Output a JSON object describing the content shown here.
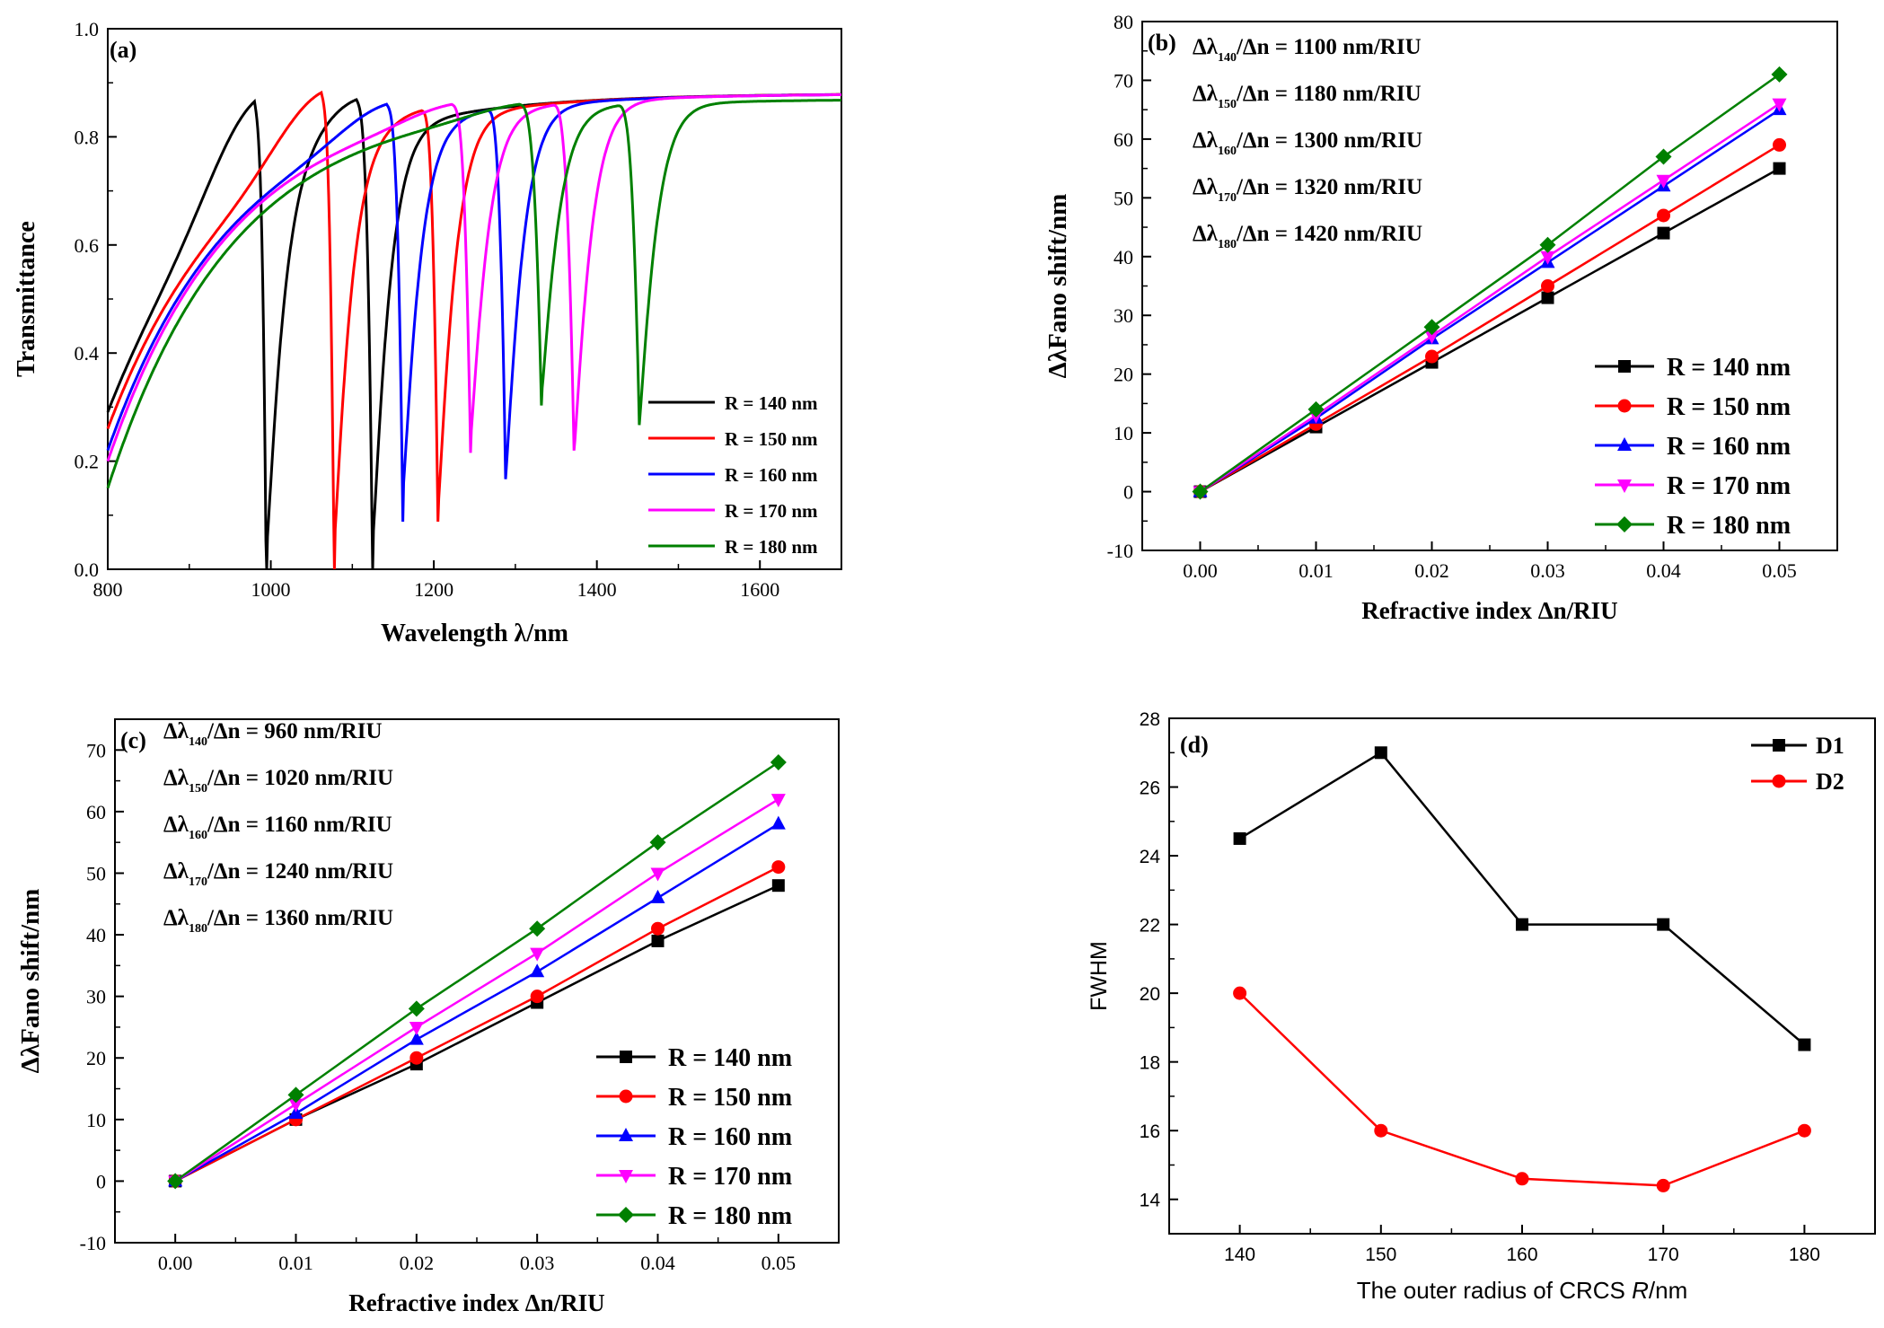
{
  "chart_data": [
    {
      "panel": "(a)",
      "type": "line",
      "xlabel": "Wavelength λ/nm",
      "ylabel": "Transmittance",
      "xlim": [
        800,
        1700
      ],
      "ylim": [
        0.0,
        1.0
      ],
      "xticks": [
        800,
        1000,
        1200,
        1400,
        1600
      ],
      "xtick_labels": [
        "800",
        "1000",
        "1200",
        "1400",
        "1600"
      ],
      "yticks": [
        0.0,
        0.2,
        0.4,
        0.6,
        0.8,
        1.0
      ],
      "ytick_labels": [
        "0.0",
        "0.2",
        "0.4",
        "0.6",
        "0.8",
        "1.0"
      ],
      "legend_position": "bottom-right",
      "series": [
        {
          "name": "R = 140 nm",
          "color": "#000000",
          "resonances": [
            {
              "peak_x": 980,
              "peak_y": 0.86,
              "dip_x": 995,
              "dip_y": 0.03
            },
            {
              "peak_x": 1105,
              "peak_y": 0.87,
              "dip_x": 1125,
              "dip_y": 0.05
            }
          ],
          "start_y": 0.29,
          "end_y": 0.88
        },
        {
          "name": "R = 150 nm",
          "color": "#ff0000",
          "resonances": [
            {
              "peak_x": 1062,
              "peak_y": 0.88,
              "dip_x": 1078,
              "dip_y": 0.05
            },
            {
              "peak_x": 1185,
              "peak_y": 0.85,
              "dip_x": 1205,
              "dip_y": 0.11
            }
          ],
          "start_y": 0.26,
          "end_y": 0.88
        },
        {
          "name": "R = 160 nm",
          "color": "#0000ff",
          "resonances": [
            {
              "peak_x": 1142,
              "peak_y": 0.86,
              "dip_x": 1162,
              "dip_y": 0.14
            },
            {
              "peak_x": 1265,
              "peak_y": 0.85,
              "dip_x": 1288,
              "dip_y": 0.17
            }
          ],
          "start_y": 0.22,
          "end_y": 0.88
        },
        {
          "name": "R = 170 nm",
          "color": "#ff00ff",
          "resonances": [
            {
              "peak_x": 1222,
              "peak_y": 0.86,
              "dip_x": 1245,
              "dip_y": 0.24
            },
            {
              "peak_x": 1345,
              "peak_y": 0.86,
              "dip_x": 1372,
              "dip_y": 0.22
            }
          ],
          "start_y": 0.2,
          "end_y": 0.88
        },
        {
          "name": "R = 180 nm",
          "color": "#008000",
          "resonances": [
            {
              "peak_x": 1305,
              "peak_y": 0.86,
              "dip_x": 1332,
              "dip_y": 0.32
            },
            {
              "peak_x": 1425,
              "peak_y": 0.86,
              "dip_x": 1452,
              "dip_y": 0.27
            }
          ],
          "start_y": 0.15,
          "end_y": 0.87
        }
      ]
    },
    {
      "panel": "(b)",
      "type": "line",
      "xlabel": "Refractive index Δn/RIU",
      "ylabel": "ΔλFano shift/nm",
      "xlim": [
        -0.005,
        0.055
      ],
      "ylim": [
        -10,
        80
      ],
      "xticks": [
        0.0,
        0.01,
        0.02,
        0.03,
        0.04,
        0.05
      ],
      "xtick_labels": [
        "0.00",
        "0.01",
        "0.02",
        "0.03",
        "0.04",
        "0.05"
      ],
      "yticks": [
        -10,
        0,
        10,
        20,
        30,
        40,
        50,
        60,
        70,
        80
      ],
      "ytick_labels": [
        "-10",
        "0",
        "10",
        "20",
        "30",
        "40",
        "50",
        "60",
        "70",
        "80"
      ],
      "x": [
        0.0,
        0.01,
        0.02,
        0.03,
        0.04,
        0.05
      ],
      "legend_position": "bottom-right",
      "annotations": [
        {
          "pre": "Δλ",
          "sub": "140",
          "post": "/Δn = 1100 nm/RIU"
        },
        {
          "pre": "Δλ",
          "sub": "150",
          "post": "/Δn = 1180 nm/RIU"
        },
        {
          "pre": "Δλ",
          "sub": "160",
          "post": "/Δn = 1300 nm/RIU"
        },
        {
          "pre": "Δλ",
          "sub": "170",
          "post": "/Δn = 1320 nm/RIU"
        },
        {
          "pre": "Δλ",
          "sub": "180",
          "post": "/Δn = 1420 nm/RIU"
        }
      ],
      "series": [
        {
          "name": "R = 140 nm",
          "color": "#000000",
          "marker": "square",
          "values": [
            0,
            11,
            22,
            33,
            44,
            55
          ]
        },
        {
          "name": "R = 150 nm",
          "color": "#ff0000",
          "marker": "circle",
          "values": [
            0,
            11.5,
            23,
            35,
            47,
            59
          ]
        },
        {
          "name": "R = 160 nm",
          "color": "#0000ff",
          "marker": "triangle-up",
          "values": [
            0,
            12.5,
            26,
            39,
            52,
            65
          ]
        },
        {
          "name": "R = 170 nm",
          "color": "#ff00ff",
          "marker": "triangle-down",
          "values": [
            0,
            13,
            26.5,
            40,
            53,
            66
          ]
        },
        {
          "name": "R = 180 nm",
          "color": "#008000",
          "marker": "diamond",
          "values": [
            0,
            14,
            28,
            42,
            57,
            71
          ]
        }
      ]
    },
    {
      "panel": "(c)",
      "type": "line",
      "xlabel": "Refractive index Δn/RIU",
      "ylabel": "ΔλFano shift/nm",
      "xlim": [
        -0.005,
        0.055
      ],
      "ylim": [
        -10,
        75
      ],
      "xticks": [
        0.0,
        0.01,
        0.02,
        0.03,
        0.04,
        0.05
      ],
      "xtick_labels": [
        "0.00",
        "0.01",
        "0.02",
        "0.03",
        "0.04",
        "0.05"
      ],
      "yticks": [
        -10,
        0,
        10,
        20,
        30,
        40,
        50,
        60,
        70
      ],
      "ytick_labels": [
        "-10",
        "0",
        "10",
        "20",
        "30",
        "40",
        "50",
        "60",
        "70"
      ],
      "x": [
        0.0,
        0.01,
        0.02,
        0.03,
        0.04,
        0.05
      ],
      "legend_position": "bottom-right",
      "annotations": [
        {
          "pre": "Δλ",
          "sub": "140",
          "post": "/Δn =  960  nm/RIU"
        },
        {
          "pre": "Δλ",
          "sub": "150",
          "post": "/Δn = 1020 nm/RIU"
        },
        {
          "pre": "Δλ",
          "sub": "160",
          "post": "/Δn = 1160 nm/RIU"
        },
        {
          "pre": "Δλ",
          "sub": "170",
          "post": "/Δn = 1240 nm/RIU"
        },
        {
          "pre": "Δλ",
          "sub": "180",
          "post": "/Δn = 1360 nm/RIU"
        }
      ],
      "series": [
        {
          "name": "R = 140 nm",
          "color": "#000000",
          "marker": "square",
          "values": [
            0,
            10,
            19,
            29,
            39,
            48
          ]
        },
        {
          "name": "R = 150 nm",
          "color": "#ff0000",
          "marker": "circle",
          "values": [
            0,
            10,
            20,
            30,
            41,
            51
          ]
        },
        {
          "name": "R = 160 nm",
          "color": "#0000ff",
          "marker": "triangle-up",
          "values": [
            0,
            11,
            23,
            34,
            46,
            58
          ]
        },
        {
          "name": "R = 170 nm",
          "color": "#ff00ff",
          "marker": "triangle-down",
          "values": [
            0,
            12.5,
            25,
            37,
            50,
            62
          ]
        },
        {
          "name": "R = 180 nm",
          "color": "#008000",
          "marker": "diamond",
          "values": [
            0,
            14,
            28,
            41,
            55,
            68
          ]
        }
      ]
    },
    {
      "panel": "(d)",
      "type": "line",
      "xlabel_pre": "The outer radius of CRCS ",
      "xlabel_italic": "R",
      "xlabel_post": "/nm",
      "ylabel": "FWHM",
      "xlim": [
        135,
        185
      ],
      "ylim": [
        13,
        28
      ],
      "xticks": [
        140,
        150,
        160,
        170,
        180
      ],
      "xtick_labels": [
        "140",
        "150",
        "160",
        "170",
        "180"
      ],
      "yticks": [
        14,
        16,
        18,
        20,
        22,
        24,
        26,
        28
      ],
      "ytick_labels": [
        "14",
        "16",
        "18",
        "20",
        "22",
        "24",
        "26",
        "28"
      ],
      "x": [
        140,
        150,
        160,
        170,
        180
      ],
      "legend_position": "top-right",
      "series": [
        {
          "name": "D1",
          "color": "#000000",
          "marker": "square",
          "values": [
            24.5,
            27,
            22,
            22,
            18.5
          ]
        },
        {
          "name": "D2",
          "color": "#ff0000",
          "marker": "circle",
          "values": [
            20,
            16,
            14.6,
            14.4,
            16
          ]
        }
      ]
    }
  ]
}
